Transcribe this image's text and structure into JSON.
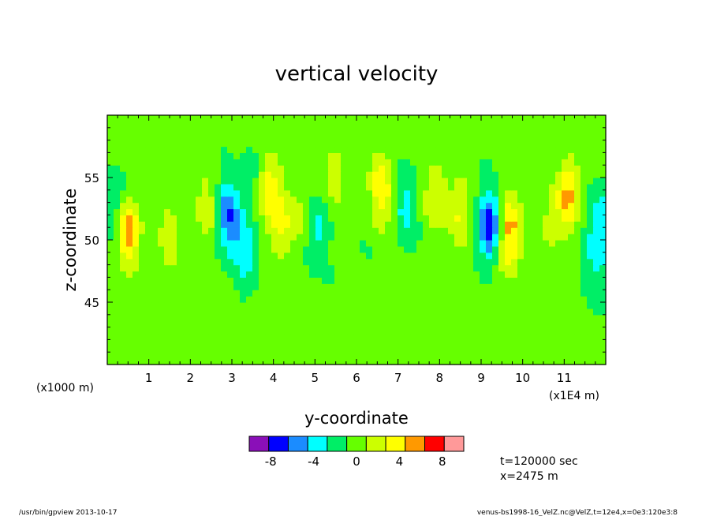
{
  "chart_data": {
    "type": "heatmap",
    "title": "vertical velocity",
    "xlabel": "y-coordinate",
    "ylabel": "z-coordinate",
    "xlim": [
      0,
      12
    ],
    "ylim": [
      40,
      60
    ],
    "x_ticks": [
      1,
      2,
      3,
      4,
      5,
      6,
      7,
      8,
      9,
      10,
      11
    ],
    "x_tick_labels": [
      "1",
      "2",
      "3",
      "4",
      "5",
      "6",
      "7",
      "8",
      "9",
      "10",
      "11"
    ],
    "y_ticks": [
      45,
      50,
      55
    ],
    "y_tick_labels": [
      "45",
      "50",
      "55"
    ],
    "x_unit_label": "(x1E4 m)",
    "y_unit_label": "(x1000 m)",
    "colorbar": {
      "levels": [
        -10,
        -8,
        -6,
        -4,
        -2,
        0,
        2,
        4,
        6,
        8,
        10
      ],
      "colors": [
        "#8a0fb8",
        "#0000ff",
        "#1b8cff",
        "#00ffff",
        "#00ee66",
        "#66ff00",
        "#ccff00",
        "#ffff00",
        "#ff9900",
        "#ff0000",
        "#ff9999"
      ],
      "tick_values": [
        -8,
        -4,
        0,
        4,
        8
      ],
      "tick_labels": [
        "-8",
        "-4",
        "0",
        "4",
        "8"
      ]
    },
    "features": [
      {
        "y": 0.5,
        "z": 50.5,
        "w": 7
      },
      {
        "y": 0.2,
        "z": 53,
        "w": -3
      },
      {
        "y": 1.5,
        "z": 50,
        "w": 3
      },
      {
        "y": 2.4,
        "z": 53,
        "w": 3
      },
      {
        "y": 2.9,
        "z": 52,
        "w": -6
      },
      {
        "y": 3.3,
        "z": 49,
        "w": -4
      },
      {
        "y": 3.5,
        "z": 55.5,
        "w": -2
      },
      {
        "y": 3.9,
        "z": 54.5,
        "w": 6
      },
      {
        "y": 4.2,
        "z": 51,
        "w": 4
      },
      {
        "y": 4.7,
        "z": 52.5,
        "w": 2
      },
      {
        "y": 5.0,
        "z": 50.5,
        "w": -3
      },
      {
        "y": 5.5,
        "z": 56,
        "w": 3
      },
      {
        "y": 6.6,
        "z": 54.5,
        "w": 6
      },
      {
        "y": 7.2,
        "z": 53,
        "w": -3
      },
      {
        "y": 7.9,
        "z": 54,
        "w": 4
      },
      {
        "y": 8.5,
        "z": 52,
        "w": 4
      },
      {
        "y": 9.2,
        "z": 51,
        "w": -8
      },
      {
        "y": 9.6,
        "z": 48.5,
        "w": 3
      },
      {
        "y": 9.7,
        "z": 51,
        "w": 5
      },
      {
        "y": 10.6,
        "z": 51,
        "w": 2
      },
      {
        "y": 11.1,
        "z": 54,
        "w": 7
      },
      {
        "y": 11.9,
        "z": 51.5,
        "w": -4
      },
      {
        "y": 11.8,
        "z": 48,
        "w": -3
      }
    ]
  },
  "footer": {
    "time_label": "t=120000 sec",
    "x_label": "x=2475 m",
    "program": "/usr/bin/gpview  2013-10-17",
    "source": "venus-bs1998-16_VelZ.nc@VelZ,t=12e4,x=0e3:120e3:8"
  }
}
